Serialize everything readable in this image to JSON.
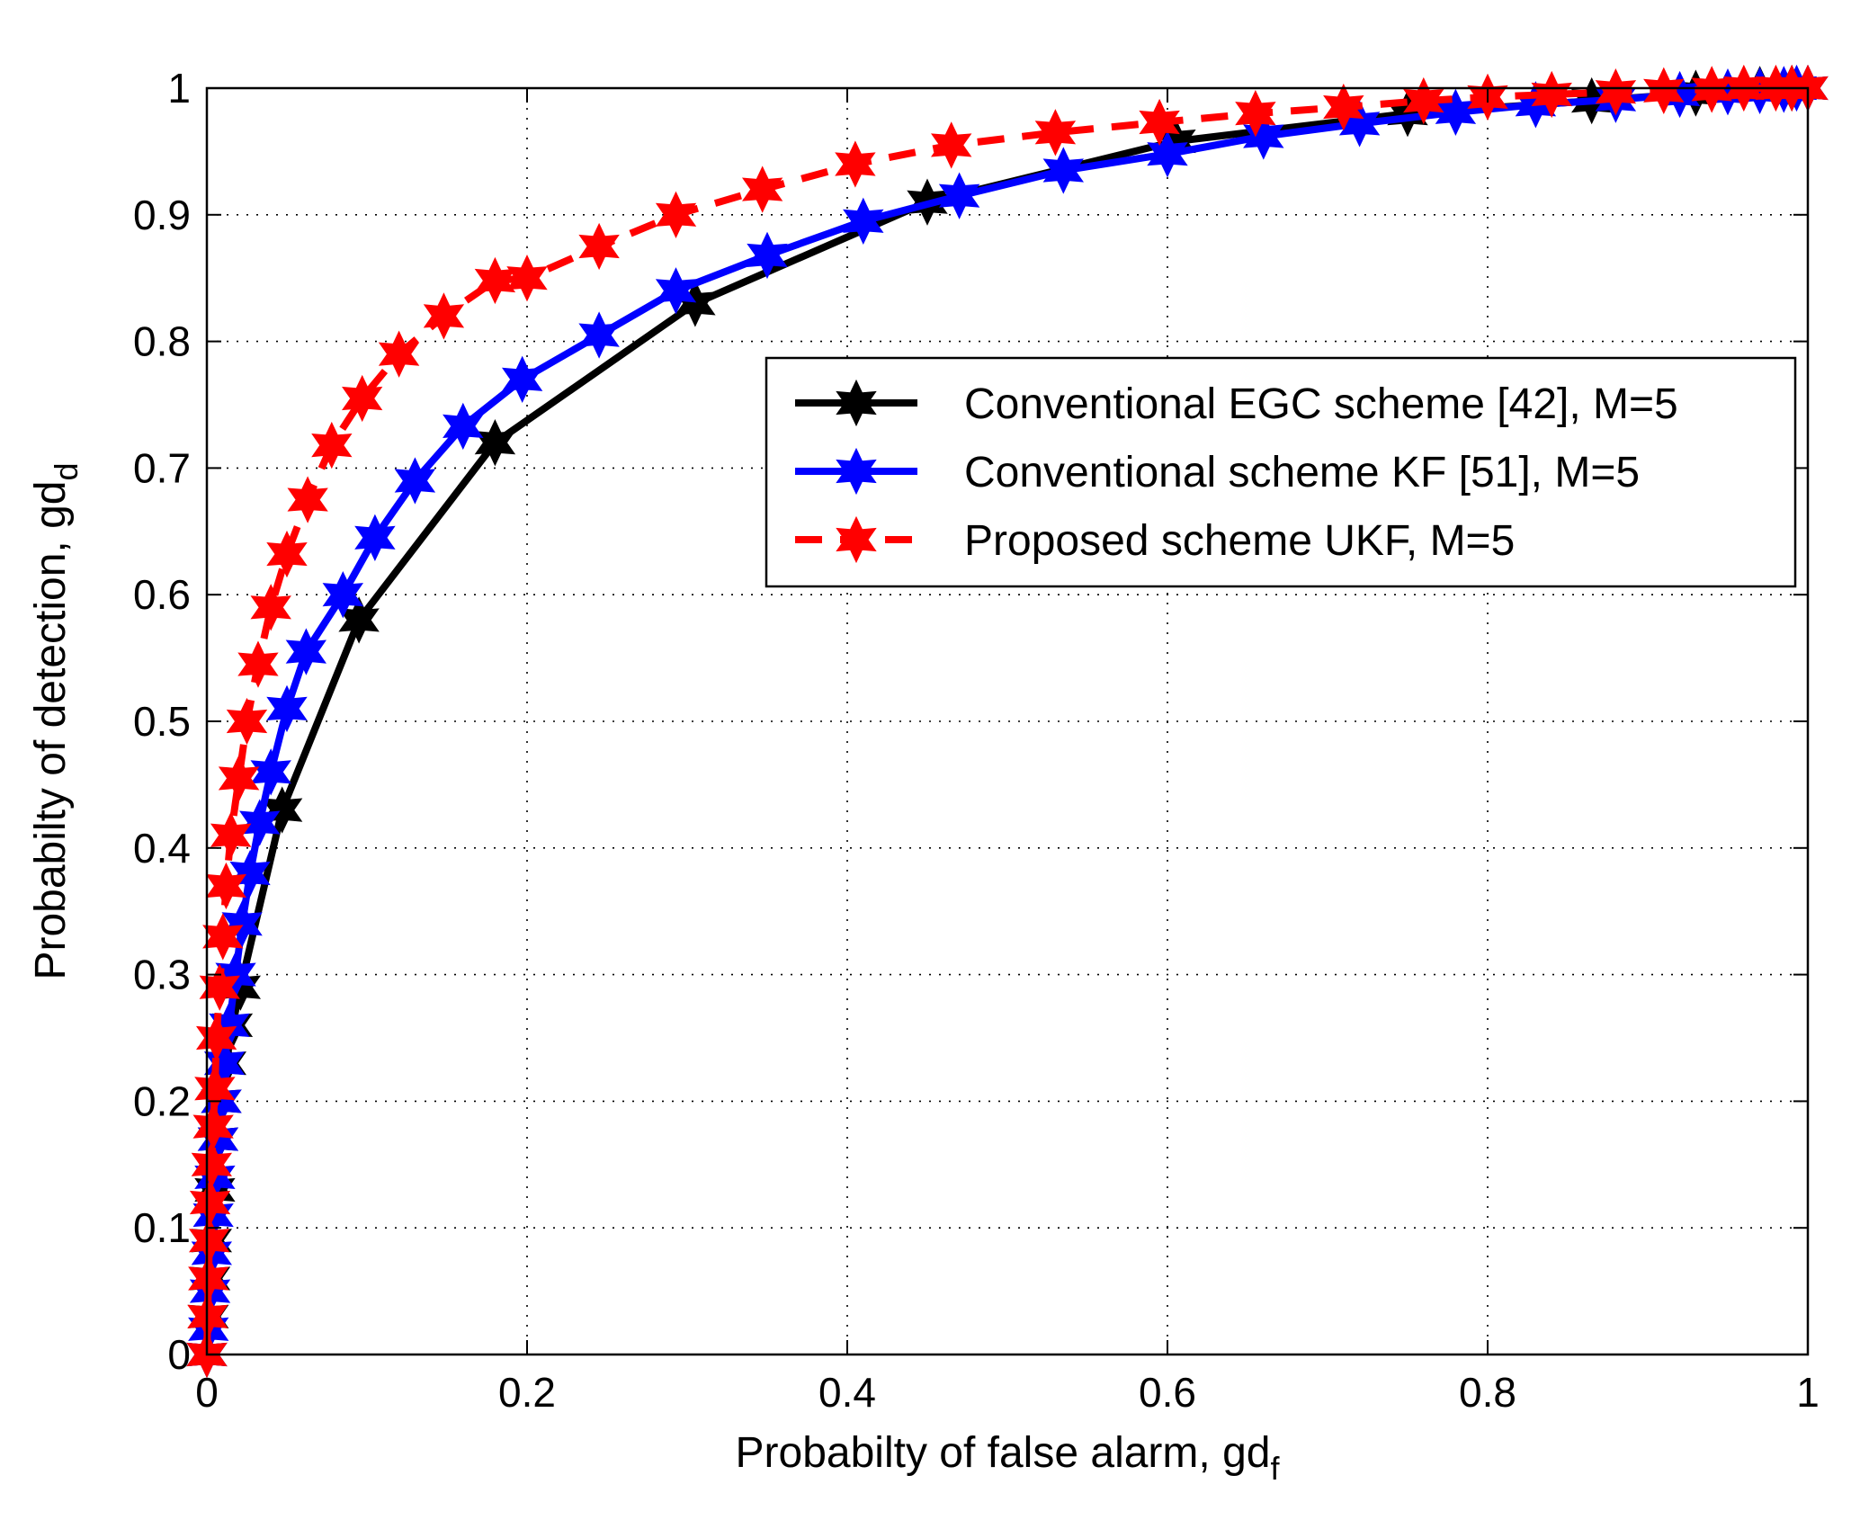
{
  "chart_data": {
    "type": "line",
    "title": "",
    "xlabel": "Probabilty of false alarm, gd",
    "xlabel_sub": "f",
    "ylabel": "Probabilty of detection, gd",
    "ylabel_sub": "d",
    "xlim": [
      0,
      1
    ],
    "ylim": [
      0,
      1
    ],
    "xticks": [
      0,
      0.2,
      0.4,
      0.6,
      0.8,
      1
    ],
    "yticks": [
      0,
      0.1,
      0.2,
      0.3,
      0.4,
      0.5,
      0.6,
      0.7,
      0.8,
      0.9,
      1
    ],
    "xtick_labels": [
      "0",
      "0.2",
      "0.4",
      "0.6",
      "0.8",
      "1"
    ],
    "ytick_labels": [
      "0",
      "0.1",
      "0.2",
      "0.3",
      "0.4",
      "0.5",
      "0.6",
      "0.7",
      "0.8",
      "0.9",
      "1"
    ],
    "grid": true,
    "legend_position": "right-middle",
    "series": [
      {
        "name": "Conventional EGC scheme [42], M=5",
        "color": "#000000",
        "line_style": "solid",
        "marker": "hexagram",
        "x": [
          0,
          0.001,
          0.002,
          0.003,
          0.005,
          0.007,
          0.009,
          0.012,
          0.016,
          0.021,
          0.047,
          0.095,
          0.18,
          0.305,
          0.45,
          0.605,
          0.75,
          0.865,
          0.93,
          0.97,
          0.99,
          1
        ],
        "y": [
          0,
          0.03,
          0.06,
          0.09,
          0.13,
          0.17,
          0.2,
          0.23,
          0.26,
          0.29,
          0.43,
          0.58,
          0.72,
          0.83,
          0.91,
          0.958,
          0.98,
          0.99,
          0.996,
          0.999,
          1,
          1
        ]
      },
      {
        "name": "Conventional scheme KF [51], M=5",
        "color": "#0000ff",
        "line_style": "solid",
        "marker": "hexagram",
        "x": [
          0,
          0.001,
          0.002,
          0.003,
          0.004,
          0.005,
          0.007,
          0.009,
          0.011,
          0.014,
          0.018,
          0.022,
          0.027,
          0.033,
          0.04,
          0.05,
          0.062,
          0.085,
          0.105,
          0.13,
          0.16,
          0.197,
          0.245,
          0.293,
          0.35,
          0.41,
          0.47,
          0.535,
          0.6,
          0.66,
          0.72,
          0.78,
          0.83,
          0.88,
          0.92,
          0.95,
          0.97,
          0.985,
          0.993,
          1
        ],
        "y": [
          0,
          0.02,
          0.05,
          0.08,
          0.11,
          0.14,
          0.17,
          0.2,
          0.23,
          0.26,
          0.3,
          0.34,
          0.38,
          0.42,
          0.46,
          0.51,
          0.555,
          0.6,
          0.645,
          0.69,
          0.733,
          0.77,
          0.805,
          0.84,
          0.868,
          0.895,
          0.915,
          0.935,
          0.948,
          0.962,
          0.972,
          0.981,
          0.987,
          0.991,
          0.995,
          0.997,
          0.998,
          0.999,
          1,
          1
        ]
      },
      {
        "name": "Proposed scheme UKF, M=5",
        "color": "#ff0000",
        "line_style": "dashed",
        "marker": "hexagram",
        "x": [
          0,
          0.0005,
          0.001,
          0.0015,
          0.002,
          0.003,
          0.004,
          0.005,
          0.006,
          0.008,
          0.01,
          0.012,
          0.015,
          0.02,
          0.025,
          0.032,
          0.04,
          0.05,
          0.063,
          0.078,
          0.097,
          0.12,
          0.148,
          0.18,
          0.2,
          0.245,
          0.293,
          0.347,
          0.405,
          0.465,
          0.53,
          0.595,
          0.655,
          0.71,
          0.76,
          0.8,
          0.84,
          0.88,
          0.91,
          0.94,
          0.96,
          0.98,
          0.99,
          1
        ],
        "y": [
          0,
          0.03,
          0.06,
          0.09,
          0.12,
          0.15,
          0.18,
          0.21,
          0.25,
          0.29,
          0.33,
          0.37,
          0.41,
          0.455,
          0.5,
          0.545,
          0.59,
          0.632,
          0.675,
          0.718,
          0.755,
          0.79,
          0.82,
          0.848,
          0.85,
          0.875,
          0.9,
          0.92,
          0.94,
          0.955,
          0.965,
          0.973,
          0.98,
          0.985,
          0.99,
          0.993,
          0.995,
          0.997,
          0.998,
          0.999,
          1,
          1,
          1,
          1
        ]
      }
    ]
  }
}
